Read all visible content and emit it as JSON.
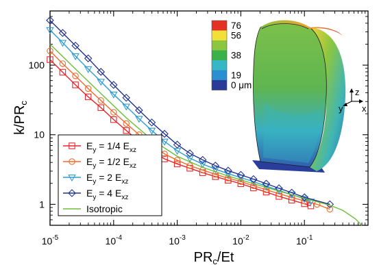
{
  "chart_data": {
    "type": "line",
    "xscale": "log",
    "yscale": "log",
    "xlim": [
      1e-05,
      1
    ],
    "ylim": [
      0.5,
      600
    ],
    "xlabel": "PR",
    "xlabel_sub": "c",
    "xlabel_tail": "/Et",
    "ylabel": "k/PR",
    "ylabel_sub": "c",
    "x_ticks": [
      {
        "value": 1e-05,
        "base": "10",
        "exp": "-5"
      },
      {
        "value": 0.0001,
        "base": "10",
        "exp": "-4"
      },
      {
        "value": 0.001,
        "base": "10",
        "exp": "-3"
      },
      {
        "value": 0.01,
        "base": "10",
        "exp": "-2"
      },
      {
        "value": 0.1,
        "base": "10",
        "exp": "-1"
      }
    ],
    "y_ticks": [
      {
        "value": 1,
        "label": "1"
      },
      {
        "value": 10,
        "label": "10"
      },
      {
        "value": 100,
        "label": "100"
      }
    ],
    "legend_position": "bottom-left",
    "series": [
      {
        "name": "Ey = 1/4 Exz",
        "legend_main": "E",
        "legend_sub1": "y",
        "legend_mid": " = 1/4 E",
        "legend_sub2": "xz",
        "marker": "square",
        "color": "#e8242a",
        "x": [
          1e-05,
          1.58e-05,
          2.51e-05,
          3.98e-05,
          6.31e-05,
          0.0001,
          0.000158,
          0.000251,
          0.000398,
          0.000631,
          0.001,
          0.00158,
          0.00251,
          0.00398,
          0.00631,
          0.01,
          0.0158,
          0.0251,
          0.0398,
          0.0631,
          0.1,
          0.126
        ],
        "y": [
          120,
          79,
          52,
          35,
          24.5,
          16.5,
          11.5,
          8.0,
          5.8,
          4.5,
          3.8,
          3.3,
          2.85,
          2.5,
          2.22,
          1.98,
          1.72,
          1.5,
          1.3,
          1.15,
          1.02,
          0.95
        ]
      },
      {
        "name": "Ey = 1/2 Exz",
        "legend_main": "E",
        "legend_sub1": "y",
        "legend_mid": " = 1/2 E",
        "legend_sub2": "xz",
        "marker": "circle",
        "color": "#f06a2a",
        "x": [
          1e-05,
          1.58e-05,
          2.51e-05,
          3.98e-05,
          6.31e-05,
          0.0001,
          0.000158,
          0.000251,
          0.000398,
          0.000631,
          0.001,
          0.00158,
          0.00251,
          0.00398,
          0.00631,
          0.01,
          0.0158,
          0.0251,
          0.0398,
          0.0631,
          0.1,
          0.158,
          0.251
        ],
        "y": [
          160,
          105,
          70,
          46,
          31,
          21,
          14.5,
          10,
          7.2,
          5.3,
          4.3,
          3.6,
          3.1,
          2.7,
          2.38,
          2.12,
          1.85,
          1.62,
          1.42,
          1.26,
          1.12,
          1.0,
          0.85
        ]
      },
      {
        "name": "Ey = 2 Exz",
        "legend_main": "E",
        "legend_sub1": "y",
        "legend_mid": " = 2 E",
        "legend_sub2": "xz",
        "marker": "triangle-down",
        "color": "#2d9ad0",
        "x": [
          1e-05,
          1.58e-05,
          2.51e-05,
          3.98e-05,
          6.31e-05,
          0.0001,
          0.000158,
          0.000251,
          0.000398,
          0.000631,
          0.001,
          0.00158,
          0.00251,
          0.00398,
          0.00631,
          0.01,
          0.0158,
          0.0251,
          0.0398,
          0.0631,
          0.1,
          0.126
        ],
        "y": [
          320,
          210,
          135,
          88,
          58,
          38,
          25.5,
          17,
          11.5,
          8.0,
          5.9,
          4.6,
          3.8,
          3.2,
          2.76,
          2.42,
          2.12,
          1.83,
          1.58,
          1.38,
          1.2,
          1.1
        ]
      },
      {
        "name": "Ey = 4 Exz",
        "legend_main": "E",
        "legend_sub1": "y",
        "legend_mid": " = 4 E",
        "legend_sub2": "xz",
        "marker": "diamond",
        "color": "#22308e",
        "x": [
          1e-05,
          1.58e-05,
          2.51e-05,
          3.98e-05,
          6.31e-05,
          0.0001,
          0.000158,
          0.000251,
          0.000398,
          0.000631,
          0.001,
          0.00158,
          0.00251,
          0.00398,
          0.00631,
          0.01,
          0.0158,
          0.0251,
          0.0398,
          0.0631,
          0.1,
          0.251
        ],
        "y": [
          440,
          290,
          190,
          125,
          80,
          52,
          34,
          22.5,
          15,
          10.3,
          7.2,
          5.4,
          4.35,
          3.6,
          3.05,
          2.65,
          2.3,
          1.98,
          1.7,
          1.47,
          1.26,
          1.0
        ]
      },
      {
        "name": "Isotropic",
        "legend_main": "Isotropic",
        "marker": "none",
        "color": "#6bbf3a",
        "x": [
          1e-05,
          2.51e-05,
          6.31e-05,
          0.000158,
          0.000398,
          0.001,
          0.00251,
          0.00631,
          0.0158,
          0.0398,
          0.1,
          0.251,
          0.4,
          0.631,
          0.8
        ],
        "y": [
          200,
          88,
          39,
          17.5,
          8.5,
          4.9,
          3.4,
          2.55,
          1.98,
          1.55,
          1.22,
          0.97,
          0.82,
          0.62,
          0.5
        ]
      }
    ]
  },
  "inset": {
    "colorbar": [
      {
        "value": "76",
        "color": "#e33224"
      },
      {
        "value": "56",
        "color": "#f1e03a"
      },
      {
        "value": "",
        "color": "#8cc63f"
      },
      {
        "value": "38",
        "color": "#3bb14a"
      },
      {
        "value": "",
        "color": "#37b7c4"
      },
      {
        "value": "19",
        "color": "#2a8fd0"
      },
      {
        "value": "0 μm",
        "color": "#283c98"
      }
    ],
    "axes_labels": {
      "z": "z",
      "y": "y",
      "x": "x"
    }
  }
}
